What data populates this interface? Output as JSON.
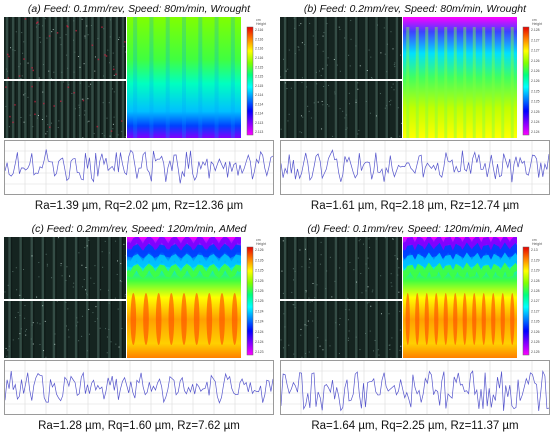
{
  "panels": [
    {
      "title": "(a) Feed: 0.1mm/rev, Speed: 80m/min, Wrought",
      "metrics": "Ra=1.39 µm, Rq=2.02 µm, Rz=12.36 µm",
      "colorbar": {
        "title": "Height",
        "unit": "cm",
        "ticks": [
          "2.116",
          "2.116",
          "2.116",
          "2.116",
          "2.115",
          "2.115",
          "2.115",
          "2.114",
          "2.114",
          "2.114",
          "2.113",
          "2.113"
        ]
      }
    },
    {
      "title": "(b) Feed: 0.2mm/rev, Speed: 80m/min, Wrought",
      "metrics": "Ra=1.61 µm, Rq=2.18 µm, Rz=12.74 µm",
      "colorbar": {
        "title": "Height",
        "unit": "cm",
        "ticks": [
          "2.128",
          "2.127",
          "2.127",
          "2.126",
          "2.126",
          "2.126",
          "2.125",
          "2.125",
          "2.125",
          "2.124",
          "2.124"
        ]
      }
    },
    {
      "title": "(c) Feed: 0.2mm/rev, Speed: 120m/min, AMed",
      "metrics": "Ra=1.28 µm, Rq=1.60 µm, Rz=7.62 µm",
      "colorbar": {
        "title": "Height",
        "unit": "cm",
        "ticks": [
          "2.126",
          "2.126",
          "2.125",
          "2.125",
          "2.125",
          "2.125",
          "2.124",
          "2.124",
          "2.124",
          "2.124",
          "2.123"
        ]
      }
    },
    {
      "title": "(d) Feed: 0.1mm/rev, Speed: 120m/min, AMed",
      "metrics": "Ra=1.64 µm, Rq=2.25 µm, Rz=11.37 µm",
      "colorbar": {
        "title": "Height",
        "unit": "cm",
        "ticks": [
          "2.13",
          "2.129",
          "2.129",
          "2.128",
          "2.128",
          "2.127",
          "2.127",
          "2.126",
          "2.126",
          "2.125",
          "2.125"
        ]
      }
    }
  ],
  "colors": {
    "micro_bg": "#152420",
    "profile_line": "#5555cc",
    "scan_line": "#ffffff",
    "heat_scale": [
      "#e60000",
      "#ff8000",
      "#ffff00",
      "#80ff00",
      "#00ff80",
      "#00ffff",
      "#0080ff",
      "#0000ff",
      "#8000ff",
      "#ff00ff"
    ]
  }
}
